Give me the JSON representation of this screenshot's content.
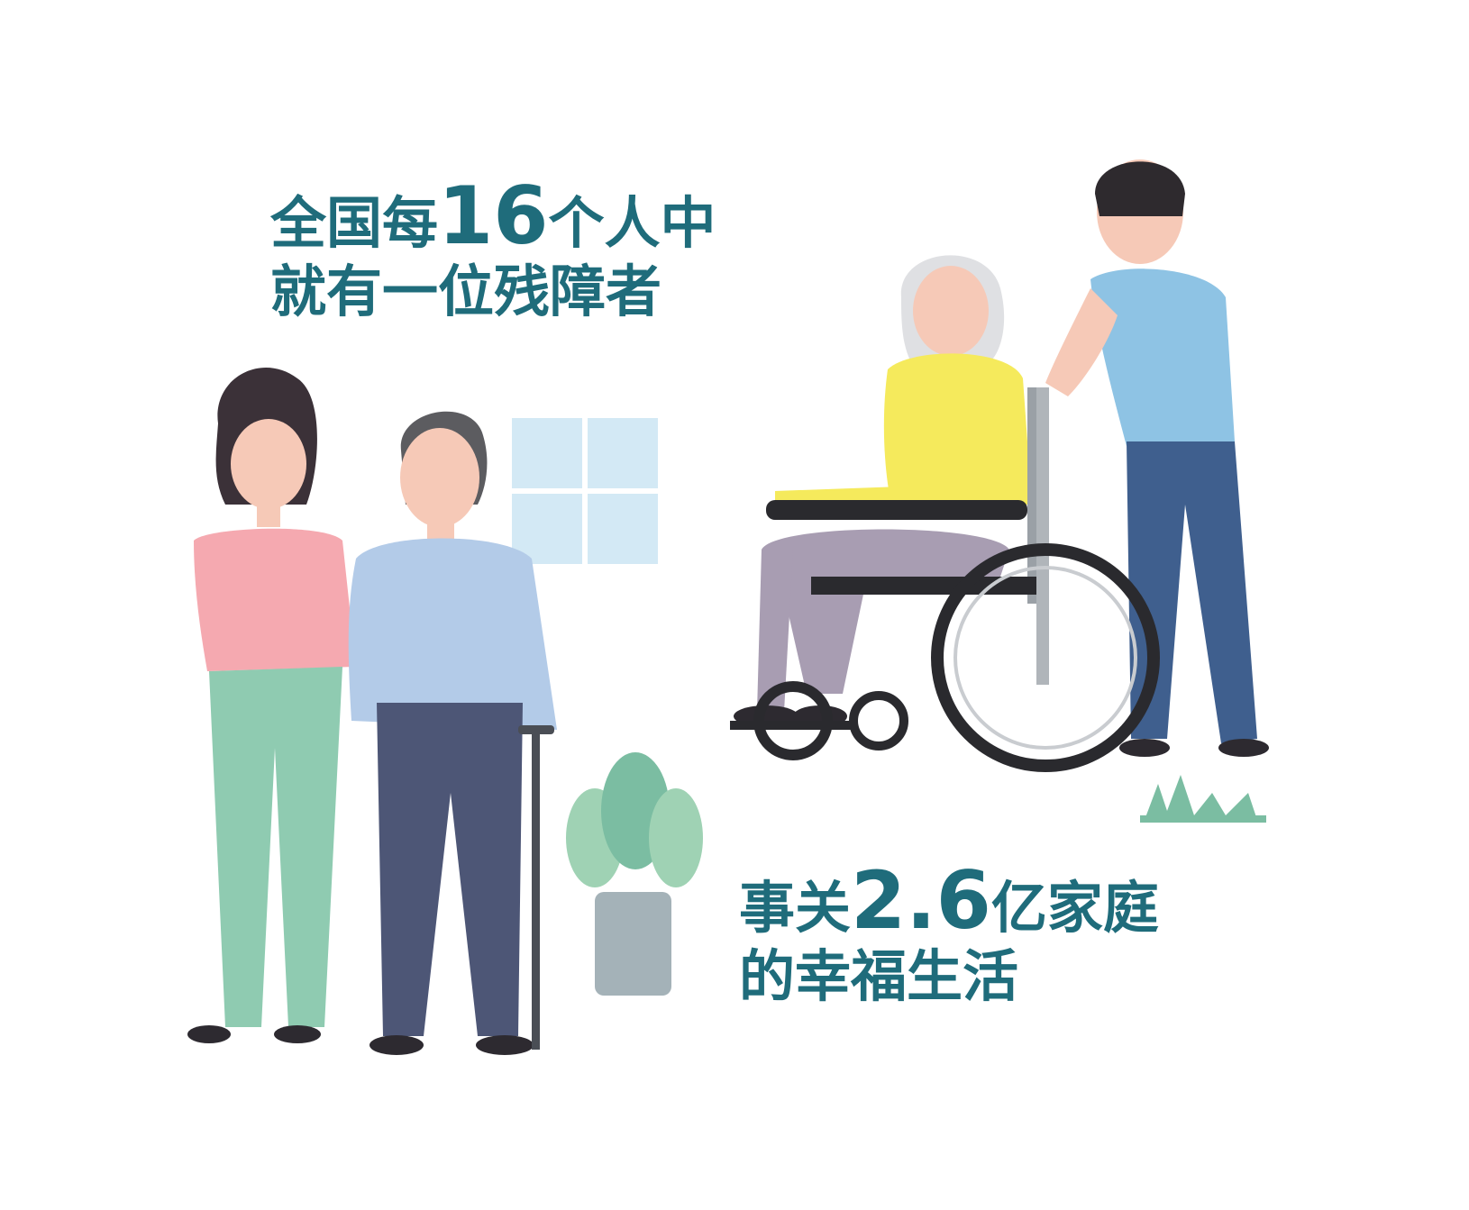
{
  "headline": {
    "line1_prefix": "全国每",
    "line1_number": "16",
    "line1_suffix": "个人中",
    "line2": "就有一位残障者"
  },
  "subline": {
    "line1_prefix": "事关",
    "line1_number": "2.6",
    "line1_suffix": "亿家庭",
    "line2": "的幸福生活"
  },
  "colors": {
    "text": "#1f6c7b",
    "window": "#d3e9f5",
    "woman_shirt": "#f5a9b0",
    "woman_pants": "#8fcbb1",
    "man_shirt": "#b3cbe8",
    "man_pants": "#4d5676",
    "elder_shirt": "#f5ea5c",
    "elder_pants": "#a89db2",
    "helper_shirt": "#8ec3e4",
    "helper_pants": "#3f5f8e",
    "plant": "#7bbda2",
    "pot": "#a4b2b8"
  }
}
